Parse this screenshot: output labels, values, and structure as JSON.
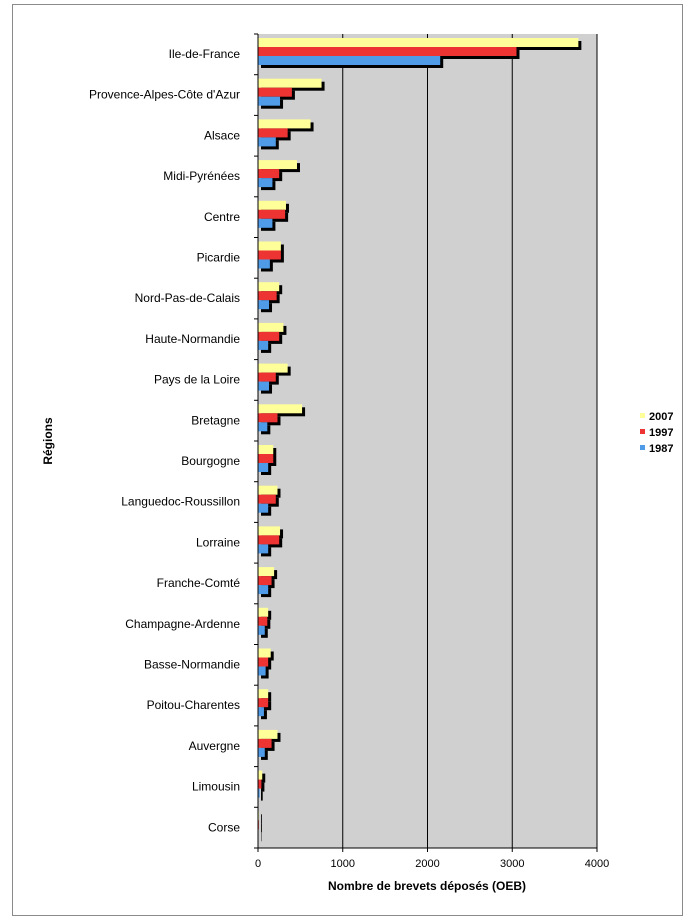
{
  "chart_data": {
    "type": "bar",
    "orientation": "horizontal",
    "categories": [
      "Ile-de-France",
      "Provence-Alpes-Côte d'Azur",
      "Alsace",
      "Midi-Pyrénées",
      "Centre",
      "Picardie",
      "Nord-Pas-de-Calais",
      "Haute-Normandie",
      "Pays de la Loire",
      "Bretagne",
      "Bourgogne",
      "Languedoc-Roussillon",
      "Lorraine",
      "Franche-Comté",
      "Champagne-Ardenne",
      "Basse-Normandie",
      "Poitou-Charentes",
      "Auvergne",
      "Limousin",
      "Corse"
    ],
    "series": [
      {
        "name": "2007",
        "color": "#ffff99",
        "values": [
          3780,
          750,
          620,
          460,
          330,
          270,
          250,
          300,
          350,
          520,
          180,
          230,
          260,
          190,
          120,
          150,
          120,
          230,
          50,
          10
        ]
      },
      {
        "name": "1997",
        "color": "#ee3333",
        "values": [
          3050,
          400,
          350,
          250,
          320,
          270,
          220,
          250,
          210,
          230,
          180,
          210,
          250,
          160,
          110,
          120,
          120,
          160,
          40,
          10
        ]
      },
      {
        "name": "1987",
        "color": "#4f9be8",
        "values": [
          2150,
          260,
          210,
          170,
          170,
          140,
          130,
          120,
          130,
          110,
          120,
          120,
          120,
          120,
          80,
          90,
          70,
          80,
          20,
          5
        ]
      }
    ],
    "xlabel": "Nombre de brevets déposés (OEB)",
    "ylabel": "Régions",
    "xlim": [
      0,
      4000
    ],
    "xticks": [
      "0",
      "1000",
      "2000",
      "3000",
      "4000"
    ],
    "grid": true,
    "legend_position": "right"
  }
}
